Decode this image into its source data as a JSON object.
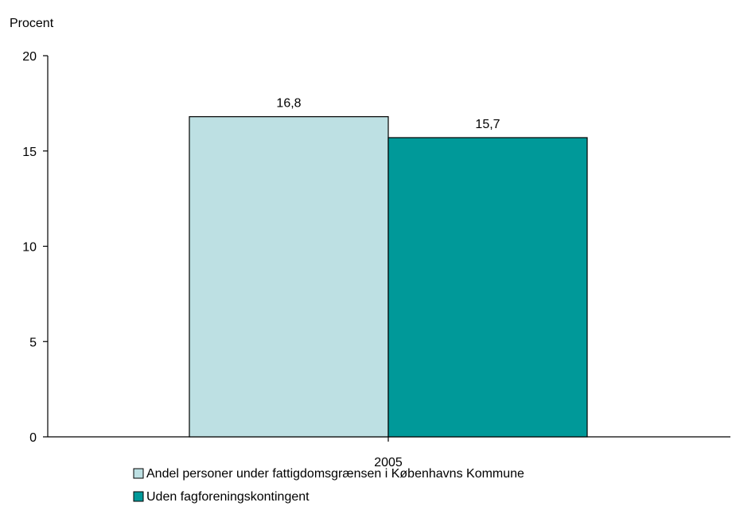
{
  "chart_data": {
    "type": "bar",
    "ylabel": "Procent",
    "xlabel": "",
    "ylim": [
      0,
      20
    ],
    "yticks": [
      "0",
      "5",
      "10",
      "15",
      "20"
    ],
    "categories": [
      "2005"
    ],
    "series": [
      {
        "name": "Andel personer under fattigdomsgrænsen i Københavns Kommune",
        "values": [
          16.8
        ],
        "value_labels": [
          "16,8"
        ],
        "color": "#bde0e3"
      },
      {
        "name": "Uden fagforeningskontingent",
        "values": [
          15.7
        ],
        "value_labels": [
          "15,7"
        ],
        "color": "#009999"
      }
    ],
    "legend_position": "bottom-left",
    "grid": false
  }
}
